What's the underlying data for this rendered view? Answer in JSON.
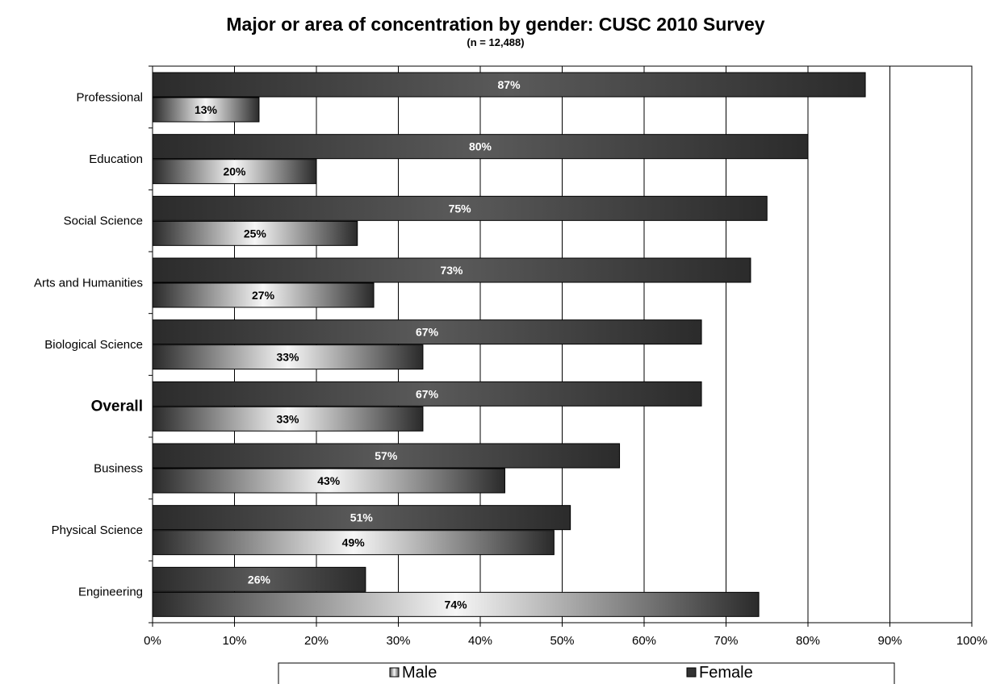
{
  "chart_data": {
    "type": "bar",
    "orientation": "horizontal",
    "title": "Major or area of concentration by gender: CUSC 2010 Survey",
    "subtitle": "(n = 12,488)",
    "categories": [
      "Professional",
      "Education",
      "Social Science",
      "Arts and Humanities",
      "Biological Science",
      "Overall",
      "Business",
      "Physical Science",
      "Engineering"
    ],
    "emphasized_category": "Overall",
    "series": [
      {
        "name": "Female",
        "values": [
          87,
          80,
          75,
          73,
          67,
          67,
          57,
          51,
          26
        ],
        "labels": [
          "87%",
          "80%",
          "75%",
          "73%",
          "67%",
          "67%",
          "57%",
          "51%",
          "26%"
        ]
      },
      {
        "name": "Male",
        "values": [
          13,
          20,
          25,
          27,
          33,
          33,
          43,
          49,
          74
        ],
        "labels": [
          "13%",
          "20%",
          "25%",
          "27%",
          "33%",
          "33%",
          "43%",
          "49%",
          "74%"
        ]
      }
    ],
    "xlim": [
      0,
      100
    ],
    "xticks": [
      0,
      10,
      20,
      30,
      40,
      50,
      60,
      70,
      80,
      90,
      100
    ],
    "xtick_labels": [
      "0%",
      "10%",
      "20%",
      "30%",
      "40%",
      "50%",
      "60%",
      "70%",
      "80%",
      "90%",
      "100%"
    ],
    "grid": "vertical",
    "legend": {
      "position": "bottom",
      "items": [
        "Male",
        "Female"
      ]
    },
    "colors": {
      "female_dark": "#2b2b2b",
      "female_mid": "#555555",
      "male_dark": "#2a2a2a",
      "male_light": "#f4f4f4",
      "grid": "#000000"
    }
  }
}
